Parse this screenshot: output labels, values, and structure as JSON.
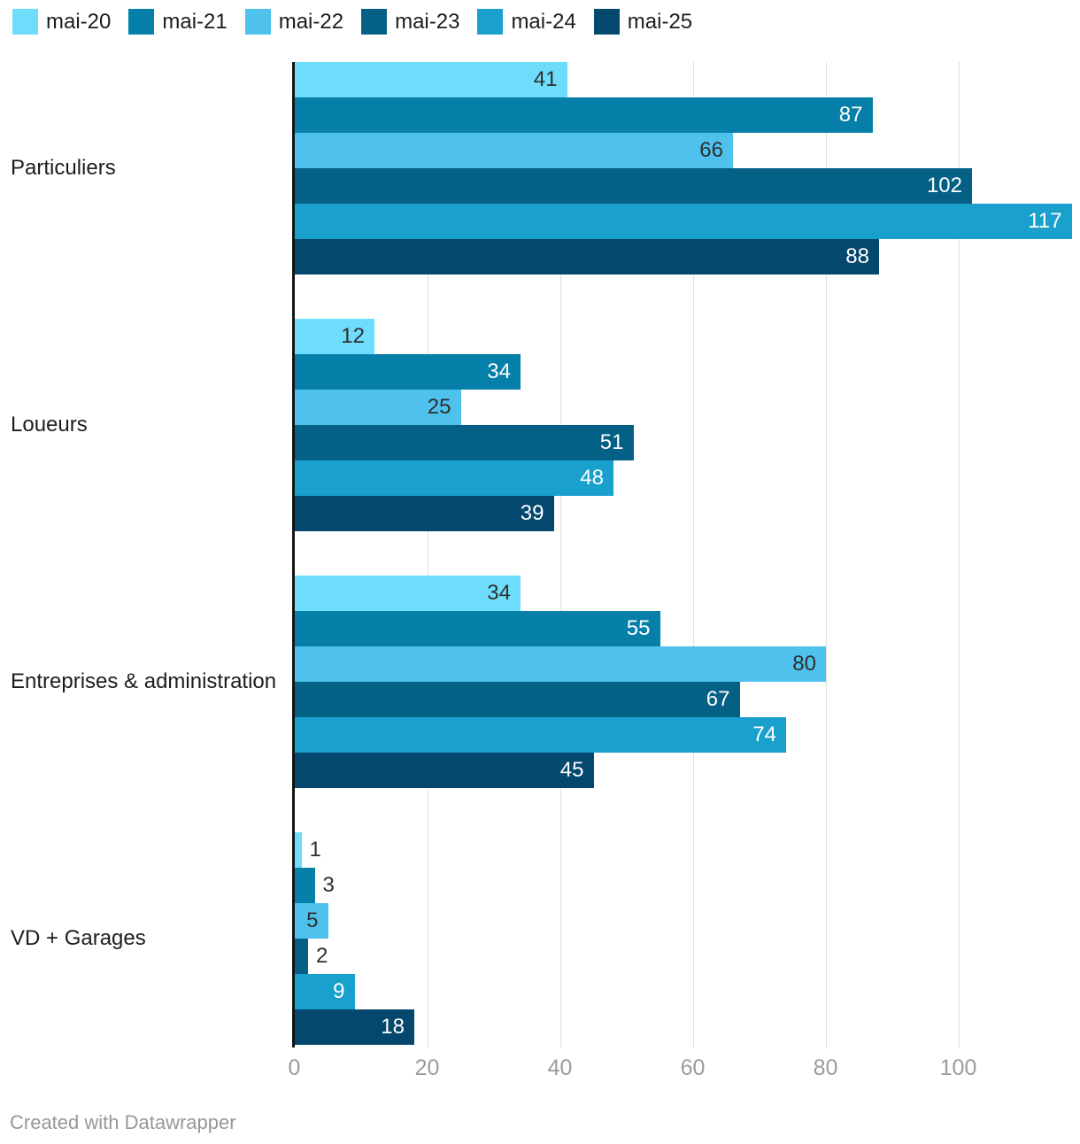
{
  "chart_data": {
    "type": "bar",
    "orientation": "horizontal",
    "title": "",
    "categories": [
      "Particuliers",
      "Loueurs",
      "Entreprises & administration",
      "VD + Garages"
    ],
    "series": [
      {
        "name": "mai-20",
        "color": "#6EDCFB",
        "label_color": "dark",
        "values": [
          41,
          12,
          34,
          1
        ]
      },
      {
        "name": "mai-21",
        "color": "#0780A9",
        "label_color": "light",
        "values": [
          87,
          34,
          55,
          3
        ]
      },
      {
        "name": "mai-22",
        "color": "#4EC1ED",
        "label_color": "dark",
        "values": [
          66,
          25,
          80,
          5
        ]
      },
      {
        "name": "mai-23",
        "color": "#046085",
        "label_color": "light",
        "values": [
          102,
          51,
          67,
          2
        ]
      },
      {
        "name": "mai-24",
        "color": "#1AA0CD",
        "label_color": "light",
        "values": [
          117,
          48,
          74,
          9
        ]
      },
      {
        "name": "mai-25",
        "color": "#05486D",
        "label_color": "light",
        "values": [
          88,
          39,
          45,
          18
        ]
      }
    ],
    "x_axis": {
      "ticks": [
        "0",
        "20",
        "40",
        "60",
        "80",
        "100"
      ],
      "tick_values": [
        0,
        20,
        40,
        60,
        80,
        100
      ],
      "min": 0,
      "max_visible": 118
    },
    "grid": true,
    "legend_position": "top",
    "value_labels": "shown on every bar, inside bar end when it fits, otherwise outside"
  },
  "footer": {
    "text": "Created with Datawrapper"
  },
  "colors": {
    "background": "#FFFFFF",
    "axis_baseline": "#141414",
    "gridline": "#E0E0E0",
    "tick_label": "#9C9C9C",
    "category_label": "#1D1D1D",
    "value_label_dark": "#2F2F2F",
    "value_label_light": "#FFFFFF",
    "attribution": "#979797"
  }
}
